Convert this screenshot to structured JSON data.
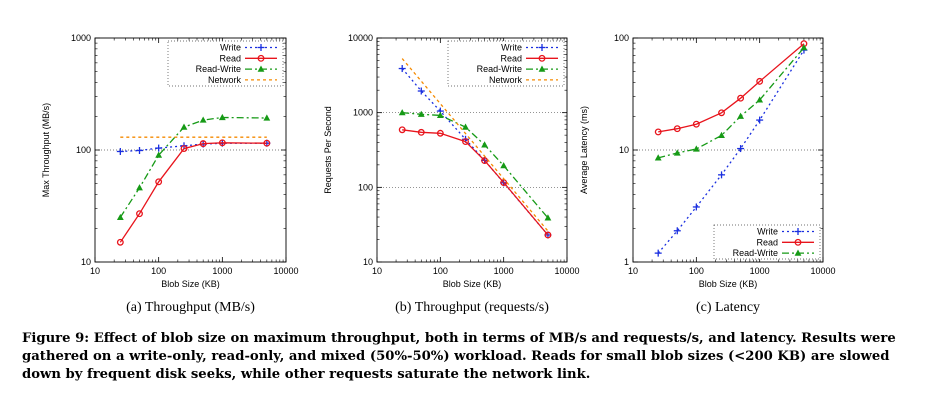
{
  "figure": {
    "caption": "Figure 9: Effect of blob size on maximum throughput, both in terms of MB/s and requests/s, and latency. Results were gathered on a write-only, read-only, and mixed (50%-50%) workload. Reads for small blob sizes (<200 KB) are slowed down by frequent disk seeks, while other requests saturate the network link."
  },
  "colors": {
    "Write": "#1a2fe0",
    "Read": "#e8141c",
    "Read-Write": "#169a16",
    "Network": "#f58a00"
  },
  "chart_data": [
    {
      "type": "line",
      "subcaption": "(a) Throughput (MB/s)",
      "xlabel": "Blob Size (KB)",
      "ylabel": "Max Throughput (MB/s)",
      "x_scale": "log",
      "y_scale": "log",
      "xlim": [
        10,
        10000
      ],
      "ylim": [
        10,
        1000
      ],
      "x_ticks": [
        {
          "v": 10,
          "label": "10"
        },
        {
          "v": 100,
          "label": "100"
        },
        {
          "v": 1000,
          "label": "1000"
        },
        {
          "v": 10000,
          "label": "10000"
        }
      ],
      "y_ticks": [
        {
          "v": 10,
          "label": "10"
        },
        {
          "v": 100,
          "label": "100"
        },
        {
          "v": 1000,
          "label": "1000"
        }
      ],
      "grid": "horizontal",
      "legend": "top-right",
      "series": [
        {
          "name": "Write",
          "marker": "plus",
          "dash": "2,3",
          "x": [
            25,
            50,
            100,
            250,
            500,
            1000,
            5000
          ],
          "y": [
            97,
            99,
            104,
            109,
            113,
            115,
            115
          ]
        },
        {
          "name": "Read",
          "marker": "circle",
          "dash": "",
          "x": [
            25,
            50,
            100,
            250,
            500,
            1000,
            5000
          ],
          "y": [
            15,
            27,
            52,
            103,
            114,
            116,
            115
          ]
        },
        {
          "name": "Read-Write",
          "marker": "triangle",
          "dash": "7,3,2,3",
          "x": [
            25,
            50,
            100,
            250,
            500,
            1000,
            5000
          ],
          "y": [
            25,
            46,
            90,
            160,
            185,
            195,
            193
          ]
        },
        {
          "name": "Network",
          "marker": "none",
          "dash": "3,3",
          "x": [
            25,
            5000
          ],
          "y": [
            130,
            130
          ]
        }
      ]
    },
    {
      "type": "line",
      "subcaption": "(b) Throughput (requests/s)",
      "xlabel": "Blob Size (KB)",
      "ylabel": "Requests Per Second",
      "x_scale": "log",
      "y_scale": "log",
      "xlim": [
        10,
        10000
      ],
      "ylim": [
        10,
        10000
      ],
      "x_ticks": [
        {
          "v": 10,
          "label": "10"
        },
        {
          "v": 100,
          "label": "100"
        },
        {
          "v": 1000,
          "label": "1000"
        },
        {
          "v": 10000,
          "label": "10000"
        }
      ],
      "y_ticks": [
        {
          "v": 10,
          "label": "10"
        },
        {
          "v": 100,
          "label": "100"
        },
        {
          "v": 1000,
          "label": "1000"
        },
        {
          "v": 10000,
          "label": "10000"
        }
      ],
      "grid": "horizontal",
      "legend": "top-right",
      "series": [
        {
          "name": "Write",
          "marker": "plus",
          "dash": "2,3",
          "x": [
            25,
            50,
            100,
            250,
            500,
            1000,
            5000
          ],
          "y": [
            3900,
            1950,
            1050,
            440,
            230,
            115,
            23
          ]
        },
        {
          "name": "Read",
          "marker": "circle",
          "dash": "",
          "x": [
            25,
            50,
            100,
            250,
            500,
            1000,
            5000
          ],
          "y": [
            590,
            545,
            530,
            410,
            228,
            116,
            23
          ]
        },
        {
          "name": "Read-Write",
          "marker": "triangle",
          "dash": "7,3,2,3",
          "x": [
            25,
            50,
            100,
            250,
            500,
            1000,
            5000
          ],
          "y": [
            1000,
            950,
            920,
            640,
            370,
            195,
            39
          ]
        },
        {
          "name": "Network",
          "marker": "none",
          "dash": "3,3",
          "x": [
            25,
            5000
          ],
          "y": [
            5300,
            26
          ]
        }
      ]
    },
    {
      "type": "line",
      "subcaption": "(c) Latency",
      "xlabel": "Blob Size (KB)",
      "ylabel": "Average Latency (ms)",
      "x_scale": "log",
      "y_scale": "log",
      "xlim": [
        10,
        10000
      ],
      "ylim": [
        1,
        100
      ],
      "x_ticks": [
        {
          "v": 10,
          "label": "10"
        },
        {
          "v": 100,
          "label": "100"
        },
        {
          "v": 1000,
          "label": "1000"
        },
        {
          "v": 10000,
          "label": "10000"
        }
      ],
      "y_ticks": [
        {
          "v": 1,
          "label": "1"
        },
        {
          "v": 10,
          "label": "10"
        },
        {
          "v": 100,
          "label": "100"
        }
      ],
      "grid": "horizontal",
      "legend": "bottom-right",
      "series": [
        {
          "name": "Write",
          "marker": "plus",
          "dash": "2,3",
          "x": [
            25,
            50,
            100,
            250,
            500,
            1000,
            5000
          ],
          "y": [
            1.2,
            1.9,
            3.1,
            6,
            10.3,
            18.5,
            78
          ]
        },
        {
          "name": "Read",
          "marker": "circle",
          "dash": "",
          "x": [
            25,
            50,
            100,
            250,
            500,
            1000,
            5000
          ],
          "y": [
            14.5,
            15.5,
            17,
            21.5,
            29,
            41,
            89
          ]
        },
        {
          "name": "Read-Write",
          "marker": "triangle",
          "dash": "7,3,2,3",
          "x": [
            25,
            50,
            100,
            250,
            500,
            1000,
            5000
          ],
          "y": [
            8.5,
            9.4,
            10.2,
            13.5,
            20,
            28,
            82
          ]
        }
      ]
    }
  ]
}
